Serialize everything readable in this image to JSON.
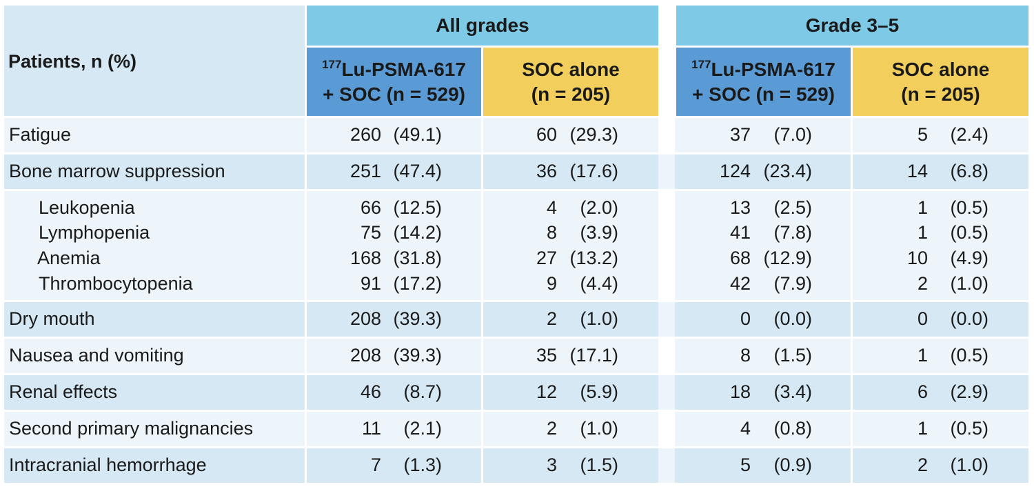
{
  "header": {
    "row_label": "Patients, n (%)",
    "groups": [
      "All grades",
      "Grade 3–5"
    ],
    "arm_a_sup": "177",
    "arm_a_line1": "Lu-PSMA-617",
    "arm_a_line2": "+ SOC (n = 529)",
    "arm_b_line1": "SOC alone",
    "arm_b_line2": "(n = 205)"
  },
  "rows": [
    {
      "label": "Fatigue",
      "cells": [
        [
          "260",
          "(49.1)"
        ],
        [
          "60",
          "(29.3)"
        ],
        [
          "37",
          "(7.0)"
        ],
        [
          "5",
          "(2.4)"
        ]
      ]
    },
    {
      "label": "Bone marrow suppression",
      "cells": [
        [
          "251",
          "(47.4)"
        ],
        [
          "36",
          "(17.6)"
        ],
        [
          "124",
          "(23.4)"
        ],
        [
          "14",
          "(6.8)"
        ]
      ]
    },
    {
      "label": "Leukopenia",
      "cells": [
        [
          "66",
          "(12.5)"
        ],
        [
          "4",
          "(2.0)"
        ],
        [
          "13",
          "(2.5)"
        ],
        [
          "1",
          "(0.5)"
        ]
      ]
    },
    {
      "label": "Lymphopenia",
      "cells": [
        [
          "75",
          "(14.2)"
        ],
        [
          "8",
          "(3.9)"
        ],
        [
          "41",
          "(7.8)"
        ],
        [
          "1",
          "(0.5)"
        ]
      ]
    },
    {
      "label": "Anemia",
      "cells": [
        [
          "168",
          "(31.8)"
        ],
        [
          "27",
          "(13.2)"
        ],
        [
          "68",
          "(12.9)"
        ],
        [
          "10",
          "(4.9)"
        ]
      ]
    },
    {
      "label": "Thrombocytopenia",
      "cells": [
        [
          "91",
          "(17.2)"
        ],
        [
          "9",
          "(4.4)"
        ],
        [
          "42",
          "(7.9)"
        ],
        [
          "2",
          "(1.0)"
        ]
      ]
    },
    {
      "label": "Dry mouth",
      "cells": [
        [
          "208",
          "(39.3)"
        ],
        [
          "2",
          "(1.0)"
        ],
        [
          "0",
          "(0.0)"
        ],
        [
          "0",
          "(0.0)"
        ]
      ]
    },
    {
      "label": "Nausea and vomiting",
      "cells": [
        [
          "208",
          "(39.3)"
        ],
        [
          "35",
          "(17.1)"
        ],
        [
          "8",
          "(1.5)"
        ],
        [
          "1",
          "(0.5)"
        ]
      ]
    },
    {
      "label": "Renal effects",
      "cells": [
        [
          "46",
          "(8.7)"
        ],
        [
          "12",
          "(5.9)"
        ],
        [
          "18",
          "(3.4)"
        ],
        [
          "6",
          "(2.9)"
        ]
      ]
    },
    {
      "label": "Second primary malignancies",
      "cells": [
        [
          "11",
          "(2.1)"
        ],
        [
          "2",
          "(1.0)"
        ],
        [
          "4",
          "(0.8)"
        ],
        [
          "1",
          "(0.5)"
        ]
      ]
    },
    {
      "label": "Intracranial hemorrhage",
      "cells": [
        [
          "7",
          "(1.3)"
        ],
        [
          "3",
          "(1.5)"
        ],
        [
          "5",
          "(0.9)"
        ],
        [
          "2",
          "(1.0)"
        ]
      ]
    }
  ],
  "colors": {
    "header_light": "#d5e8f3",
    "header_group": "#7ecae6",
    "arm_a": "#5b9bd5",
    "arm_b": "#f2ce5c",
    "row_dark": "#d5e8f3",
    "row_light": "#edf5fa"
  }
}
